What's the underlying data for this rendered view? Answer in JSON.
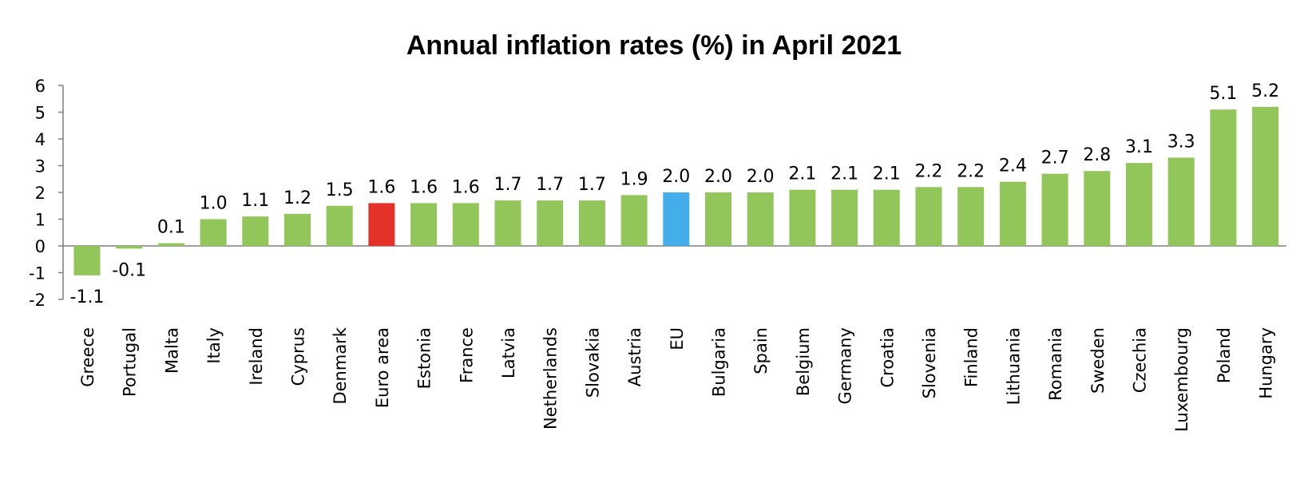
{
  "chart_data": {
    "type": "bar",
    "title": "Annual inflation rates (%) in April 2021",
    "xlabel": "",
    "ylabel": "",
    "ylim": [
      -2,
      6
    ],
    "yticks": [
      -2,
      -1,
      0,
      1,
      2,
      3,
      4,
      5,
      6
    ],
    "grid": false,
    "legend": "none",
    "categories": [
      "Greece",
      "Portugal",
      "Malta",
      "Italy",
      "Ireland",
      "Cyprus",
      "Denmark",
      "Euro area",
      "Estonia",
      "France",
      "Latvia",
      "Netherlands",
      "Slovakia",
      "Austria",
      "EU",
      "Bulgaria",
      "Spain",
      "Belgium",
      "Germany",
      "Croatia",
      "Slovenia",
      "Finland",
      "Lithuania",
      "Romania",
      "Sweden",
      "Czechia",
      "Luxembourg",
      "Poland",
      "Hungary"
    ],
    "values": [
      -1.1,
      -0.1,
      0.1,
      1.0,
      1.1,
      1.2,
      1.5,
      1.6,
      1.6,
      1.6,
      1.7,
      1.7,
      1.7,
      1.9,
      2.0,
      2.0,
      2.0,
      2.1,
      2.1,
      2.1,
      2.2,
      2.2,
      2.4,
      2.7,
      2.8,
      3.1,
      3.3,
      5.1,
      5.2
    ],
    "data_labels": [
      "-1.1",
      "-0.1",
      "0.1",
      "1.0",
      "1.1",
      "1.2",
      "1.5",
      "1.6",
      "1.6",
      "1.6",
      "1.7",
      "1.7",
      "1.7",
      "1.9",
      "2.0",
      "2.0",
      "2.0",
      "2.1",
      "2.1",
      "2.1",
      "2.2",
      "2.2",
      "2.4",
      "2.7",
      "2.8",
      "3.1",
      "3.3",
      "5.1",
      "5.2"
    ],
    "colors": {
      "default": "#92c65a",
      "Euro area": "#e4312a",
      "EU": "#44aeea"
    }
  }
}
